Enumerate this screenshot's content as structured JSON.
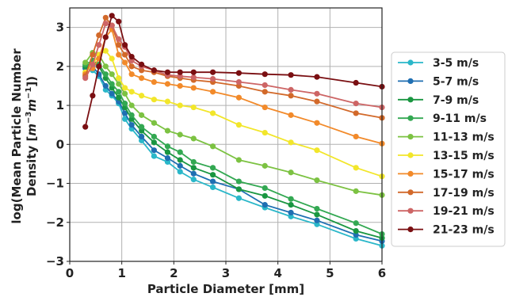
{
  "chart_data": {
    "type": "line",
    "title": "",
    "xlabel": "Particle Diameter [mm]",
    "ylabel_line1": "log(Mean Particle Number",
    "ylabel_line2_text": "Density [",
    "ylabel_line2_unit_m": "m",
    "ylabel_line2_exp1": "−3",
    "ylabel_line2_unit_m2": "m",
    "ylabel_line2_exp2": "−1",
    "ylabel_line2_close": "])",
    "xlim": [
      0,
      6
    ],
    "ylim": [
      -3,
      3.5
    ],
    "x_ticks": [
      0,
      1,
      2,
      3,
      4,
      5,
      6
    ],
    "x_tick_labels": [
      "0",
      "1",
      "2",
      "3",
      "4",
      "5",
      "6"
    ],
    "y_ticks": [
      -3,
      -2,
      -1,
      0,
      1,
      2,
      3
    ],
    "y_tick_labels": [
      "−3",
      "−2",
      "−1",
      "0",
      "1",
      "2",
      "3"
    ],
    "grid": true,
    "legend_position": "outside-right",
    "x": [
      0.3,
      0.44,
      0.56,
      0.69,
      0.81,
      0.94,
      1.06,
      1.19,
      1.38,
      1.62,
      1.88,
      2.12,
      2.38,
      2.75,
      3.25,
      3.75,
      4.25,
      4.75,
      5.5,
      6.0
    ],
    "series": [
      {
        "name": "3-5 m/s",
        "color": "#2ab7c9",
        "values": [
          1.95,
          1.9,
          1.75,
          1.4,
          1.25,
          1.05,
          0.65,
          0.4,
          0.1,
          -0.3,
          -0.45,
          -0.7,
          -0.9,
          -1.1,
          -1.38,
          -1.62,
          -1.85,
          -2.05,
          -2.42,
          -2.6
        ]
      },
      {
        "name": "5-7 m/s",
        "color": "#1f6fb2",
        "values": [
          1.95,
          2.0,
          1.8,
          1.5,
          1.3,
          1.1,
          0.8,
          0.5,
          0.2,
          -0.15,
          -0.35,
          -0.55,
          -0.75,
          -0.95,
          -1.15,
          -1.55,
          -1.75,
          -1.95,
          -2.32,
          -2.48
        ]
      },
      {
        "name": "7-9 m/s",
        "color": "#1a9641",
        "values": [
          2.0,
          2.1,
          2.0,
          1.7,
          1.45,
          1.2,
          0.95,
          0.65,
          0.35,
          0.05,
          -0.2,
          -0.4,
          -0.6,
          -0.78,
          -1.15,
          -1.32,
          -1.55,
          -1.8,
          -2.22,
          -2.4
        ]
      },
      {
        "name": "9-11 m/s",
        "color": "#33a852",
        "values": [
          2.05,
          2.15,
          2.05,
          1.8,
          1.55,
          1.35,
          1.05,
          0.75,
          0.45,
          0.2,
          -0.05,
          -0.2,
          -0.45,
          -0.6,
          -0.95,
          -1.12,
          -1.4,
          -1.65,
          -2.02,
          -2.3
        ]
      },
      {
        "name": "11-13 m/s",
        "color": "#7cc242",
        "values": [
          2.1,
          2.35,
          2.3,
          2.0,
          1.8,
          1.55,
          1.3,
          1.0,
          0.75,
          0.55,
          0.35,
          0.25,
          0.15,
          -0.05,
          -0.4,
          -0.55,
          -0.72,
          -0.92,
          -1.2,
          -1.3
        ]
      },
      {
        "name": "13-15 m/s",
        "color": "#f2e62a",
        "values": [
          1.85,
          2.05,
          2.3,
          2.4,
          2.2,
          1.7,
          1.45,
          1.35,
          1.25,
          1.15,
          1.1,
          1.0,
          0.95,
          0.8,
          0.5,
          0.3,
          0.05,
          -0.15,
          -0.6,
          -0.82
        ]
      },
      {
        "name": "15-17 m/s",
        "color": "#f28a2a",
        "values": [
          1.8,
          1.95,
          2.2,
          2.75,
          2.95,
          2.3,
          2.1,
          1.8,
          1.7,
          1.6,
          1.55,
          1.5,
          1.45,
          1.35,
          1.2,
          0.95,
          0.75,
          0.55,
          0.2,
          0.02
        ]
      },
      {
        "name": "17-19 m/s",
        "color": "#d2692a",
        "values": [
          1.75,
          2.3,
          2.8,
          3.25,
          3.05,
          2.55,
          2.3,
          2.0,
          1.9,
          1.85,
          1.75,
          1.7,
          1.65,
          1.6,
          1.5,
          1.35,
          1.25,
          1.1,
          0.8,
          0.68
        ]
      },
      {
        "name": "19-21 m/s",
        "color": "#cd6565",
        "values": [
          1.7,
          2.05,
          2.55,
          3.1,
          3.05,
          2.7,
          2.5,
          2.15,
          2.0,
          1.9,
          1.78,
          1.75,
          1.72,
          1.68,
          1.6,
          1.52,
          1.4,
          1.3,
          1.05,
          0.95
        ]
      },
      {
        "name": "21-23 m/s",
        "color": "#7a0f12",
        "values": [
          0.45,
          1.25,
          2.0,
          2.75,
          3.3,
          3.15,
          2.55,
          2.25,
          2.05,
          1.9,
          1.85,
          1.85,
          1.85,
          1.85,
          1.83,
          1.8,
          1.78,
          1.73,
          1.58,
          1.48
        ]
      }
    ]
  }
}
